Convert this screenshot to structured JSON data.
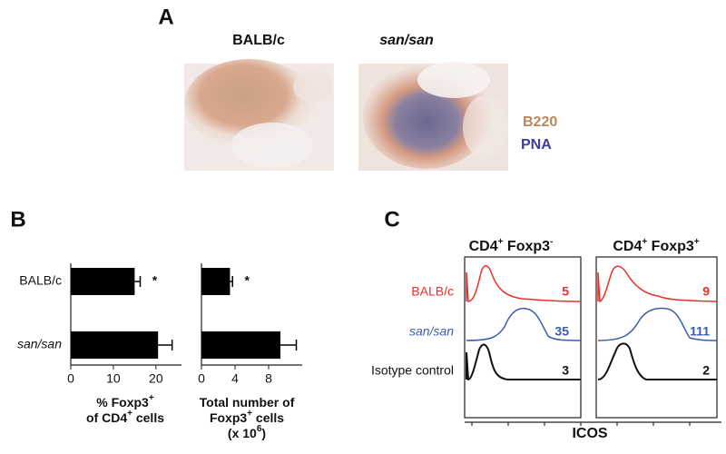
{
  "panel_a": {
    "label": "A",
    "strains": [
      "BALB/c",
      "san/san"
    ],
    "stains": [
      "B220",
      "PNA"
    ]
  },
  "panel_b": {
    "label": "B",
    "categories": [
      "BALB/c",
      "san/san"
    ],
    "charts": [
      {
        "values": [
          15,
          20.5
        ],
        "errors": [
          1.3,
          3.3
        ],
        "xlim": [
          0,
          26
        ],
        "xticks": [
          0,
          10,
          20
        ],
        "annotations": [
          "*"
        ],
        "xlabel": [
          [
            {
              "text": "% Foxp3"
            },
            {
              "text": "+",
              "sup": true
            }
          ],
          [
            {
              "text": "of CD4"
            },
            {
              "text": "+",
              "sup": true
            },
            {
              "text": " cells"
            }
          ]
        ]
      },
      {
        "values": [
          3.4,
          9.4
        ],
        "errors": [
          0.3,
          1.9
        ],
        "xlim": [
          0,
          12
        ],
        "xticks": [
          0,
          4,
          8
        ],
        "annotations": [
          "*"
        ],
        "xlabel": [
          [
            {
              "text": "Total number of"
            }
          ],
          [
            {
              "text": "Foxp3"
            },
            {
              "text": "+",
              "sup": true
            },
            {
              "text": " cells"
            }
          ],
          [
            {
              "text": "(x 10"
            },
            {
              "text": "6",
              "sup": true
            },
            {
              "text": ")"
            }
          ]
        ]
      }
    ]
  },
  "panel_c": {
    "label": "C",
    "columns": [
      [
        {
          "text": "CD4"
        },
        {
          "text": "+",
          "sup": true
        },
        {
          "text": " Foxp3"
        },
        {
          "text": "-",
          "sup": true
        }
      ],
      [
        {
          "text": "CD4"
        },
        {
          "text": "+",
          "sup": true
        },
        {
          "text": " Foxp3"
        },
        {
          "text": "+",
          "sup": true
        }
      ]
    ],
    "rows": [
      "BALB/c",
      "san/san",
      "Isotype control"
    ],
    "mfi": [
      [
        5,
        35,
        3
      ],
      [
        9,
        111,
        2
      ]
    ],
    "xlabel": "ICOS"
  }
}
